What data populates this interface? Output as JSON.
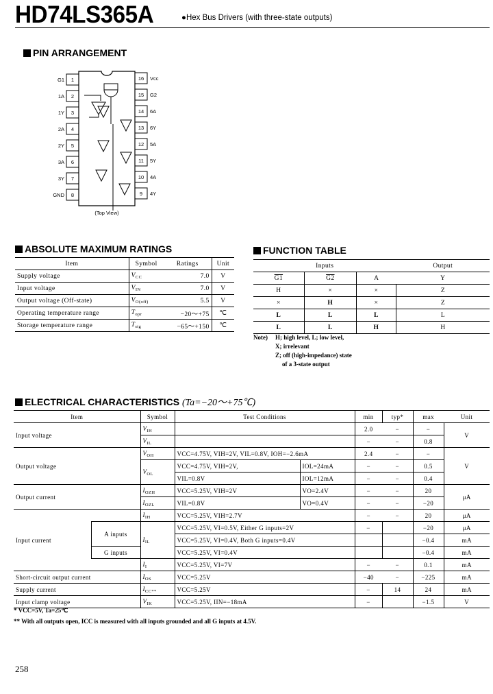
{
  "header": {
    "part_number": "HD74LS365A",
    "bullet": "●",
    "description": "Hex Bus Drivers (with three-state outputs)"
  },
  "pin_arrangement": {
    "heading": "PIN ARRANGEMENT",
    "view_label": "(Top View)",
    "left_pins": [
      {
        "num": "1",
        "name": "G1"
      },
      {
        "num": "2",
        "name": "1A"
      },
      {
        "num": "3",
        "name": "1Y"
      },
      {
        "num": "4",
        "name": "2A"
      },
      {
        "num": "5",
        "name": "2Y"
      },
      {
        "num": "6",
        "name": "3A"
      },
      {
        "num": "7",
        "name": "3Y"
      },
      {
        "num": "8",
        "name": "GND"
      }
    ],
    "right_pins": [
      {
        "num": "16",
        "name": "Vcc"
      },
      {
        "num": "15",
        "name": "G2"
      },
      {
        "num": "14",
        "name": "6A"
      },
      {
        "num": "13",
        "name": "6Y"
      },
      {
        "num": "12",
        "name": "5A"
      },
      {
        "num": "11",
        "name": "5Y"
      },
      {
        "num": "10",
        "name": "4A"
      },
      {
        "num": "9",
        "name": "4Y"
      }
    ]
  },
  "abs_max": {
    "heading": "ABSOLUTE MAXIMUM RATINGS",
    "columns": [
      "Item",
      "Symbol",
      "Ratings",
      "Unit"
    ],
    "rows": [
      {
        "item": "Supply voltage",
        "sym": "V",
        "sub": "CC",
        "rating": "7.0",
        "unit": "V"
      },
      {
        "item": "Input voltage",
        "sym": "V",
        "sub": "IN",
        "rating": "7.0",
        "unit": "V"
      },
      {
        "item": "Output voltage (Off-state)",
        "sym": "V",
        "sub": "O(off)",
        "rating": "5.5",
        "unit": "V"
      },
      {
        "item": "Operating temperature range",
        "sym": "T",
        "sub": "opr",
        "rating": "−20～+75",
        "unit": "℃"
      },
      {
        "item": "Storage temperature range",
        "sym": "T",
        "sub": "stg",
        "rating": "−65～+150",
        "unit": "℃"
      }
    ]
  },
  "function_table": {
    "heading": "FUNCTION TABLE",
    "group_inputs": "Inputs",
    "group_output": "Output",
    "columns": [
      "G1",
      "G2",
      "A",
      "Y"
    ],
    "rows": [
      [
        "H",
        "×",
        "×",
        "Z"
      ],
      [
        "×",
        "H",
        "×",
        "Z"
      ],
      [
        "L",
        "L",
        "L",
        "L"
      ],
      [
        "L",
        "L",
        "H",
        "H"
      ]
    ],
    "note_label": "Note)",
    "notes": [
      "H; high level, L; low level,",
      "X; irrelevant",
      "Z; off (high-impedance) state",
      "of a 3-state output"
    ]
  },
  "electrical": {
    "heading": "ELECTRICAL CHARACTERISTICS",
    "condition": "(Ta=−20～+75℃)",
    "columns": {
      "item": "Item",
      "symbol": "Symbol",
      "cond": "Test Conditions",
      "min": "min",
      "typ": "typ*",
      "max": "max",
      "unit": "Unit"
    },
    "input_voltage": "Input voltage",
    "output_voltage": "Output voltage",
    "output_current": "Output current",
    "input_current": "Input current",
    "a_inputs": "A inputs",
    "g_inputs": "G inputs",
    "r_vih": {
      "sym": "V",
      "sub": "IH",
      "min": "2.0",
      "typ": "−",
      "max": "−"
    },
    "r_vil": {
      "sym": "V",
      "sub": "IL",
      "min": "−",
      "typ": "−",
      "max": "0.8",
      "unit": "V"
    },
    "r_voh": {
      "sym": "V",
      "sub": "OH",
      "cond": "VCC=4.75V, VIH=2V, VIL=0.8V, IOH=−2.6mA",
      "min": "2.4",
      "typ": "−",
      "max": "−"
    },
    "r_vol1": {
      "sym": "V",
      "sub": "OL",
      "cond": "VCC=4.75V, VIH=2V,",
      "cond2": "IOL=24mA",
      "min": "−",
      "typ": "−",
      "max": "0.5",
      "unit": "V"
    },
    "r_vol2": {
      "cond": "VIL=0.8V",
      "cond2": "IOL=12mA",
      "min": "−",
      "typ": "−",
      "max": "0.4"
    },
    "r_iozh": {
      "sym": "I",
      "sub": "OZH",
      "cond": "VCC=5.25V, VIH=2V",
      "cond2": "VO=2.4V",
      "min": "−",
      "typ": "−",
      "max": "20",
      "unit": "μA"
    },
    "r_iozl": {
      "sym": "I",
      "sub": "OZL",
      "cond": "VIL=0.8V",
      "cond2": "VO=0.4V",
      "min": "−",
      "typ": "−",
      "max": "−20"
    },
    "r_iih": {
      "sym": "I",
      "sub": "IH",
      "cond": "VCC=5.25V, VIH=2.7V",
      "min": "−",
      "typ": "−",
      "max": "20",
      "unit": "μA"
    },
    "r_iil1": {
      "sym": "I",
      "sub": "IL",
      "cond": "VCC=5.25V, VI=0.5V, Either G inputs=2V",
      "min": "−",
      "max": "−20",
      "unit": "μA"
    },
    "r_iil2": {
      "cond": "VCC=5.25V, VI=0.4V, Both G inputs=0.4V",
      "max": "−0.4",
      "unit": "mA"
    },
    "r_iil3": {
      "cond": "VCC=5.25V, VI=0.4V",
      "max": "−0.4",
      "unit": "mA"
    },
    "r_ii": {
      "sym": "I",
      "sub": "I",
      "cond": "VCC=5.25V, VI=7V",
      "min": "−",
      "typ": "−",
      "max": "0.1",
      "unit": "mA"
    },
    "r_ios": {
      "item": "Short-circuit output current",
      "sym": "I",
      "sub": "OS",
      "cond": "VCC=5.25V",
      "min": "−40",
      "typ": "−",
      "max": "−225",
      "unit": "mA"
    },
    "r_icc": {
      "item": "Supply current",
      "sym": "I",
      "sub": "CC**",
      "cond": "VCC=5.25V",
      "min": "−",
      "typ": "14",
      "max": "24",
      "unit": "mA"
    },
    "r_vik": {
      "item": "Input clamp voltage",
      "sym": "V",
      "sub": "IK",
      "cond": "VCC=5.25V, IIN=−18mA",
      "min": "−",
      "max": "−1.5",
      "unit": "V"
    },
    "footnotes": [
      "* VCC=5V, Ta=25℃",
      "** With all outputs open, ICC is measured with all inputs grounded and all G inputs at 4.5V."
    ]
  },
  "page_number": "258"
}
